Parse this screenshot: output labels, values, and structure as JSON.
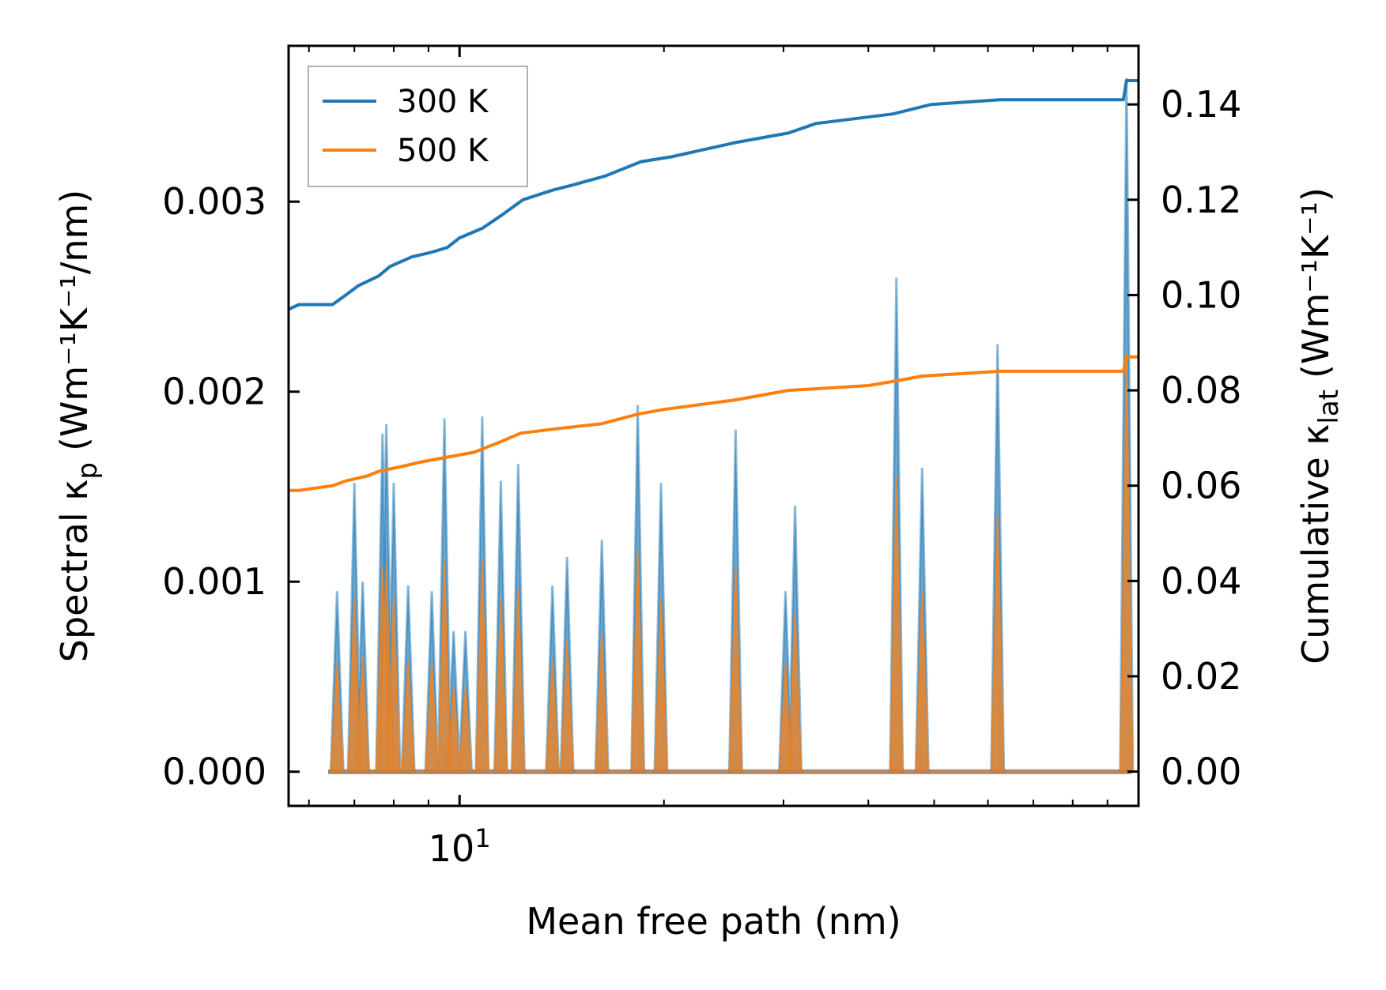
{
  "chart_data": {
    "type": "line",
    "xlabel": "Mean free path (nm)",
    "ylabel_left": "Spectral κ",
    "ylabel_left_sub": "p",
    "ylabel_left_unit": "(Wm⁻¹K⁻¹/nm)",
    "ylabel_right": "Cumulative κ",
    "ylabel_right_sub": "lat",
    "ylabel_right_unit": "(Wm⁻¹K⁻¹)",
    "x_scale": "log",
    "xlim": [
      5.6,
      100
    ],
    "ylim_left": [
      -0.00018,
      0.00382
    ],
    "ylim_right": [
      -0.0072,
      0.1523
    ],
    "x_ticks": [
      {
        "value": 10,
        "label": "10",
        "exp": "1"
      }
    ],
    "y_left_ticks": [
      {
        "value": 0.0,
        "label": "0.000"
      },
      {
        "value": 0.001,
        "label": "0.001"
      },
      {
        "value": 0.002,
        "label": "0.002"
      },
      {
        "value": 0.003,
        "label": "0.003"
      }
    ],
    "y_right_ticks": [
      {
        "value": 0.0,
        "label": "0.00"
      },
      {
        "value": 0.02,
        "label": "0.02"
      },
      {
        "value": 0.04,
        "label": "0.04"
      },
      {
        "value": 0.06,
        "label": "0.06"
      },
      {
        "value": 0.08,
        "label": "0.08"
      },
      {
        "value": 0.1,
        "label": "0.10"
      },
      {
        "value": 0.12,
        "label": "0.12"
      },
      {
        "value": 0.14,
        "label": "0.14"
      }
    ],
    "legend": {
      "position": "top-left",
      "entries": [
        "300 K",
        "500 K"
      ]
    },
    "colors": {
      "s300": "#1f77b4",
      "s500": "#ff7f0e",
      "fill_blue": "#1f77b4",
      "fill_orange": "#ff7f0e"
    },
    "peaks_300K": [
      {
        "x": 6.6,
        "y": 0.00095
      },
      {
        "x": 7.0,
        "y": 0.00152
      },
      {
        "x": 7.2,
        "y": 0.001
      },
      {
        "x": 7.7,
        "y": 0.00178
      },
      {
        "x": 7.8,
        "y": 0.00183
      },
      {
        "x": 8.0,
        "y": 0.00152
      },
      {
        "x": 8.4,
        "y": 0.00098
      },
      {
        "x": 9.1,
        "y": 0.00095
      },
      {
        "x": 9.5,
        "y": 0.00186
      },
      {
        "x": 9.8,
        "y": 0.00074
      },
      {
        "x": 10.2,
        "y": 0.00074
      },
      {
        "x": 10.8,
        "y": 0.00187
      },
      {
        "x": 11.5,
        "y": 0.00153
      },
      {
        "x": 12.2,
        "y": 0.00162
      },
      {
        "x": 13.7,
        "y": 0.00098
      },
      {
        "x": 14.4,
        "y": 0.00113
      },
      {
        "x": 16.2,
        "y": 0.00122
      },
      {
        "x": 18.3,
        "y": 0.00193
      },
      {
        "x": 19.8,
        "y": 0.00152
      },
      {
        "x": 25.5,
        "y": 0.0018
      },
      {
        "x": 30.2,
        "y": 0.00095
      },
      {
        "x": 31.2,
        "y": 0.0014
      },
      {
        "x": 44.0,
        "y": 0.0026
      },
      {
        "x": 48.0,
        "y": 0.0016
      },
      {
        "x": 62.0,
        "y": 0.00225
      },
      {
        "x": 96.0,
        "y": 0.00365
      }
    ],
    "peaks_500K": [
      {
        "x": 6.6,
        "y": 0.00057
      },
      {
        "x": 7.0,
        "y": 0.00092
      },
      {
        "x": 7.2,
        "y": 0.0006
      },
      {
        "x": 7.7,
        "y": 0.00108
      },
      {
        "x": 7.8,
        "y": 0.0011
      },
      {
        "x": 8.0,
        "y": 0.00092
      },
      {
        "x": 8.4,
        "y": 0.00059
      },
      {
        "x": 9.1,
        "y": 0.00057
      },
      {
        "x": 9.5,
        "y": 0.00112
      },
      {
        "x": 9.8,
        "y": 0.00045
      },
      {
        "x": 10.2,
        "y": 0.00045
      },
      {
        "x": 10.8,
        "y": 0.00112
      },
      {
        "x": 11.5,
        "y": 0.00092
      },
      {
        "x": 12.2,
        "y": 0.00097
      },
      {
        "x": 13.7,
        "y": 0.00059
      },
      {
        "x": 14.4,
        "y": 0.00068
      },
      {
        "x": 16.2,
        "y": 0.00073
      },
      {
        "x": 18.3,
        "y": 0.00116
      },
      {
        "x": 19.8,
        "y": 0.00092
      },
      {
        "x": 25.5,
        "y": 0.00108
      },
      {
        "x": 30.2,
        "y": 0.00057
      },
      {
        "x": 31.2,
        "y": 0.00084
      },
      {
        "x": 44.0,
        "y": 0.00156
      },
      {
        "x": 48.0,
        "y": 0.00096
      },
      {
        "x": 62.0,
        "y": 0.00135
      },
      {
        "x": 96.0,
        "y": 0.0022
      }
    ],
    "series": [
      {
        "name": "300 K",
        "color": "#1f77b4",
        "axis": "right",
        "points": [
          [
            5.6,
            0.097
          ],
          [
            5.8,
            0.098
          ],
          [
            6.5,
            0.098
          ],
          [
            6.8,
            0.1
          ],
          [
            7.1,
            0.102
          ],
          [
            7.6,
            0.104
          ],
          [
            7.9,
            0.106
          ],
          [
            8.5,
            0.108
          ],
          [
            9.1,
            0.109
          ],
          [
            9.6,
            0.11
          ],
          [
            10.0,
            0.112
          ],
          [
            10.8,
            0.114
          ],
          [
            11.6,
            0.117
          ],
          [
            12.4,
            0.12
          ],
          [
            13.7,
            0.122
          ],
          [
            14.6,
            0.123
          ],
          [
            16.4,
            0.125
          ],
          [
            18.5,
            0.128
          ],
          [
            20.5,
            0.129
          ],
          [
            25.5,
            0.132
          ],
          [
            30.5,
            0.134
          ],
          [
            33.5,
            0.136
          ],
          [
            43.5,
            0.138
          ],
          [
            49.5,
            0.14
          ],
          [
            62.5,
            0.141
          ],
          [
            95.0,
            0.141
          ],
          [
            96.0,
            0.145
          ],
          [
            100.0,
            0.145
          ]
        ]
      },
      {
        "name": "500 K",
        "color": "#ff7f0e",
        "axis": "right",
        "points": [
          [
            5.6,
            0.059
          ],
          [
            5.8,
            0.059
          ],
          [
            6.5,
            0.06
          ],
          [
            6.8,
            0.061
          ],
          [
            7.3,
            0.062
          ],
          [
            7.6,
            0.063
          ],
          [
            8.2,
            0.064
          ],
          [
            8.8,
            0.065
          ],
          [
            9.6,
            0.066
          ],
          [
            10.5,
            0.067
          ],
          [
            11.4,
            0.069
          ],
          [
            12.3,
            0.071
          ],
          [
            14.0,
            0.072
          ],
          [
            16.2,
            0.073
          ],
          [
            18.3,
            0.075
          ],
          [
            20.0,
            0.076
          ],
          [
            25.5,
            0.078
          ],
          [
            30.5,
            0.08
          ],
          [
            40.0,
            0.081
          ],
          [
            44.0,
            0.082
          ],
          [
            48.0,
            0.083
          ],
          [
            62.5,
            0.084
          ],
          [
            95.0,
            0.084
          ],
          [
            96.0,
            0.087
          ],
          [
            100.0,
            0.087
          ]
        ]
      }
    ]
  }
}
